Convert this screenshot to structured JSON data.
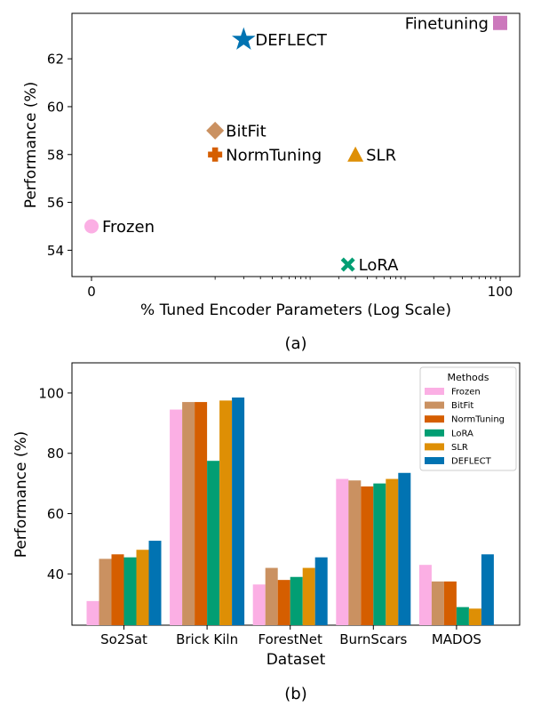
{
  "chart_data": [
    {
      "type": "scatter",
      "caption": "(a)",
      "xlabel": "% Tuned Encoder Parameters (Log Scale)",
      "ylabel": "Performance (%)",
      "x_scale": "log",
      "x_ticks": [
        {
          "value": 0,
          "label": "0"
        },
        {
          "value": 100,
          "label": "100"
        }
      ],
      "y_ticks": [
        54,
        56,
        58,
        60,
        62
      ],
      "ylim": [
        52.9,
        63.9
      ],
      "grid": false,
      "points": [
        {
          "label": "Frozen",
          "x": 0,
          "y": 55.0,
          "marker": "circle",
          "color": "#fbafe4"
        },
        {
          "label": "BitFit",
          "x": 0.1,
          "y": 59.0,
          "marker": "diamond",
          "color": "#ca9161"
        },
        {
          "label": "NormTuning",
          "x": 0.1,
          "y": 58.0,
          "marker": "plus",
          "color": "#d55e00"
        },
        {
          "label": "DEFLECT",
          "x": 0.2,
          "y": 62.8,
          "marker": "star",
          "color": "#0173b2"
        },
        {
          "label": "SLR",
          "x": 3,
          "y": 58.0,
          "marker": "triangle",
          "color": "#de8f05"
        },
        {
          "label": "LoRA",
          "x": 2.5,
          "y": 53.4,
          "marker": "x",
          "color": "#029e73"
        },
        {
          "label": "Finetuning",
          "x": 100,
          "y": 63.5,
          "marker": "square",
          "color": "#cc78bc"
        }
      ]
    },
    {
      "type": "bar",
      "caption": "(b)",
      "xlabel": "Dataset",
      "ylabel": "Performance (%)",
      "ylim": [
        23,
        110
      ],
      "y_ticks": [
        40,
        60,
        80,
        100
      ],
      "grid": false,
      "legend_title": "Methods",
      "legend_position": "top-right",
      "categories": [
        "So2Sat",
        "Brick Kiln",
        "ForestNet",
        "BurnScars",
        "MADOS"
      ],
      "series": [
        {
          "name": "Frozen",
          "color": "#fbafe4",
          "values": [
            31.0,
            94.5,
            36.5,
            71.5,
            43.0
          ]
        },
        {
          "name": "BitFit",
          "color": "#ca9161",
          "values": [
            45.0,
            97.0,
            42.0,
            71.0,
            37.5
          ]
        },
        {
          "name": "NormTuning",
          "color": "#d55e00",
          "values": [
            46.5,
            97.0,
            38.0,
            69.0,
            37.5
          ]
        },
        {
          "name": "LoRA",
          "color": "#029e73",
          "values": [
            45.5,
            77.5,
            39.0,
            70.0,
            29.0
          ]
        },
        {
          "name": "SLR",
          "color": "#de8f05",
          "values": [
            48.0,
            97.5,
            42.0,
            71.5,
            28.5
          ]
        },
        {
          "name": "DEFLECT",
          "color": "#0173b2",
          "values": [
            51.0,
            98.5,
            45.5,
            73.5,
            46.5
          ]
        }
      ]
    }
  ]
}
